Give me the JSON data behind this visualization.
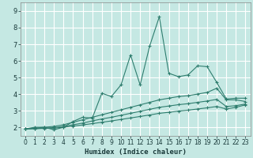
{
  "xlabel": "Humidex (Indice chaleur)",
  "xlim": [
    -0.5,
    23.5
  ],
  "ylim": [
    1.5,
    9.5
  ],
  "yticks": [
    2,
    3,
    4,
    5,
    6,
    7,
    8,
    9
  ],
  "xticks": [
    0,
    1,
    2,
    3,
    4,
    5,
    6,
    7,
    8,
    9,
    10,
    11,
    12,
    13,
    14,
    15,
    16,
    17,
    18,
    19,
    20,
    21,
    22,
    23
  ],
  "bg_color": "#c5e8e3",
  "grid_color": "#ffffff",
  "line_color": "#2e7d6e",
  "line1_x": [
    0,
    1,
    2,
    3,
    4,
    5,
    6,
    7,
    8,
    9,
    10,
    11,
    12,
    13,
    14,
    15,
    16,
    17,
    18,
    19,
    20,
    21,
    22,
    23
  ],
  "line1_y": [
    1.9,
    2.0,
    2.0,
    1.85,
    2.0,
    2.35,
    2.6,
    2.55,
    4.05,
    3.85,
    4.55,
    6.35,
    4.55,
    6.9,
    8.65,
    5.25,
    5.05,
    5.15,
    5.7,
    5.65,
    4.7,
    3.7,
    3.75,
    3.75
  ],
  "line2_x": [
    0,
    1,
    2,
    3,
    4,
    5,
    6,
    7,
    8,
    9,
    10,
    11,
    12,
    13,
    14,
    15,
    16,
    17,
    18,
    19,
    20,
    21,
    22,
    23
  ],
  "line2_y": [
    1.9,
    1.95,
    2.0,
    2.05,
    2.15,
    2.3,
    2.45,
    2.6,
    2.75,
    2.9,
    3.05,
    3.2,
    3.35,
    3.5,
    3.65,
    3.75,
    3.85,
    3.9,
    4.0,
    4.1,
    4.35,
    3.65,
    3.65,
    3.55
  ],
  "line3_x": [
    0,
    1,
    2,
    3,
    4,
    5,
    6,
    7,
    8,
    9,
    10,
    11,
    12,
    13,
    14,
    15,
    16,
    17,
    18,
    19,
    20,
    21,
    22,
    23
  ],
  "line3_y": [
    1.9,
    1.92,
    1.95,
    1.98,
    2.05,
    2.15,
    2.25,
    2.38,
    2.5,
    2.6,
    2.72,
    2.84,
    2.96,
    3.08,
    3.2,
    3.28,
    3.36,
    3.42,
    3.5,
    3.58,
    3.68,
    3.25,
    3.3,
    3.4
  ],
  "line4_x": [
    0,
    1,
    2,
    3,
    4,
    5,
    6,
    7,
    8,
    9,
    10,
    11,
    12,
    13,
    14,
    15,
    16,
    17,
    18,
    19,
    20,
    21,
    22,
    23
  ],
  "line4_y": [
    1.9,
    1.91,
    1.93,
    1.95,
    2.0,
    2.07,
    2.14,
    2.22,
    2.3,
    2.38,
    2.47,
    2.56,
    2.65,
    2.74,
    2.84,
    2.9,
    2.97,
    3.03,
    3.1,
    3.17,
    3.25,
    3.1,
    3.2,
    3.35
  ],
  "xlabel_fontsize": 6.5,
  "xlabel_color": "#1a3a3a",
  "tick_color": "#1a3a3a",
  "tick_labelsize": 5.5,
  "ytick_labelsize": 6.0
}
